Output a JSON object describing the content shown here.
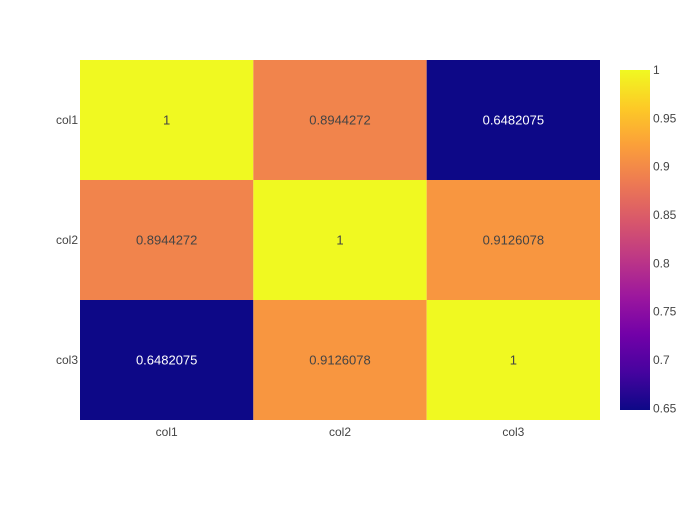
{
  "chart_data": {
    "type": "heatmap",
    "x_labels": [
      "col1",
      "col2",
      "col3"
    ],
    "y_labels": [
      "col1",
      "col2",
      "col3"
    ],
    "values": [
      [
        1,
        0.8944272,
        0.6482075
      ],
      [
        0.8944272,
        1,
        0.9126078
      ],
      [
        0.6482075,
        0.9126078,
        1
      ]
    ],
    "cell_labels": [
      [
        "1",
        "0.8944272",
        "0.6482075"
      ],
      [
        "0.8944272",
        "1",
        "0.9126078"
      ],
      [
        "0.6482075",
        "0.9126078",
        "1"
      ]
    ],
    "colorscale": "plasma",
    "zlim": [
      0.6482075,
      1
    ],
    "colorbar_ticks": [
      0.65,
      0.7,
      0.75,
      0.8,
      0.85,
      0.9,
      0.95,
      1
    ],
    "colorbar_tick_labels": [
      "0.65",
      "0.7",
      "0.75",
      "0.8",
      "0.85",
      "0.9",
      "0.95",
      "1"
    ],
    "colorscale_stops": [
      "#0d0887",
      "#46039f",
      "#7201a8",
      "#9c179e",
      "#bd3786",
      "#d8576b",
      "#ed7953",
      "#fb9f3a",
      "#fdca26",
      "#f0f921"
    ],
    "colors": {
      "axis_text": "#444444",
      "background": "#ffffff"
    }
  }
}
